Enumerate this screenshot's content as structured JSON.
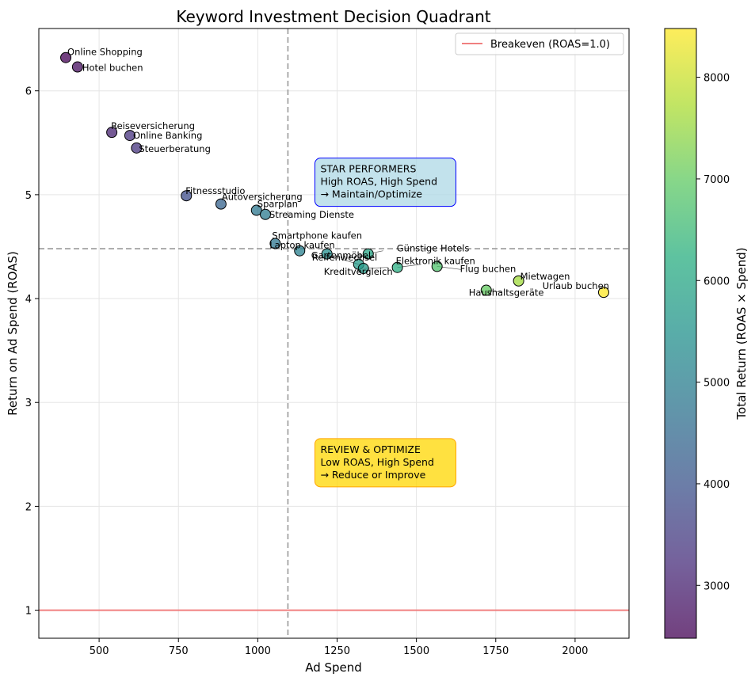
{
  "chart_data": {
    "type": "scatter",
    "title": "Keyword Investment Decision Quadrant",
    "xlabel": "Ad Spend",
    "ylabel": "Return on Ad Spend (ROAS)",
    "xlim": [
      310,
      2170
    ],
    "ylim": [
      0.73,
      6.6
    ],
    "x_ticks": [
      500,
      750,
      1000,
      1250,
      1500,
      1750,
      2000
    ],
    "y_ticks": [
      1,
      2,
      3,
      4,
      5,
      6
    ],
    "grid": true,
    "colormap": "viridis",
    "colorbar": {
      "label": "Total Return (ROAS × Spend)",
      "range": [
        2480,
        8480
      ],
      "ticks": [
        3000,
        4000,
        5000,
        6000,
        7000,
        8000
      ]
    },
    "reference_lines": {
      "breakeven_y": 1.0,
      "breakeven_color": "#f08080",
      "median_x": 1095,
      "median_y": 4.48
    },
    "legend": {
      "position": "top-right",
      "entries": [
        {
          "label": "Breakeven (ROAS=1.0)",
          "color": "#f08080"
        }
      ]
    },
    "annotations": [
      {
        "id": "star",
        "lines": [
          "STAR PERFORMERS",
          "High ROAS, High Spend",
          "→ Maintain/Optimize"
        ],
        "x": 1200,
        "y": 5.2,
        "fill": "#add8e6",
        "border": "#0000ff"
      },
      {
        "id": "review",
        "lines": [
          "REVIEW & OPTIMIZE",
          "Low ROAS, High Spend",
          "→ Reduce or Improve"
        ],
        "x": 1200,
        "y": 2.5,
        "fill": "#ffd700",
        "border": "#ffa500"
      }
    ],
    "points": [
      {
        "label": "Online Shopping",
        "x": 395,
        "y": 6.32,
        "total": 2497
      },
      {
        "label": "Hotel buchen",
        "x": 432,
        "y": 6.23,
        "total": 2691
      },
      {
        "label": "Reiseversicherung",
        "x": 540,
        "y": 5.6,
        "total": 3024
      },
      {
        "label": "Online Banking",
        "x": 597,
        "y": 5.57,
        "total": 3325
      },
      {
        "label": "Steuerberatung",
        "x": 618,
        "y": 5.45,
        "total": 3368
      },
      {
        "label": "Fitnessstudio",
        "x": 775,
        "y": 4.99,
        "total": 3867
      },
      {
        "label": "Autoversicherung",
        "x": 884,
        "y": 4.91,
        "total": 4340
      },
      {
        "label": "Sparplan",
        "x": 996,
        "y": 4.85,
        "total": 4831
      },
      {
        "label": "Streaming Dienste",
        "x": 1024,
        "y": 4.81,
        "total": 4925
      },
      {
        "label": "Smartphone kaufen",
        "x": 1055,
        "y": 4.53,
        "total": 4779
      },
      {
        "label": "Laptop kaufen",
        "x": 1132,
        "y": 4.46,
        "total": 5049
      },
      {
        "label": "Gartenmöbel",
        "x": 1218,
        "y": 4.43,
        "total": 5396
      },
      {
        "label": "Günstige Hotels",
        "x": 1348,
        "y": 4.43,
        "total": 5972
      },
      {
        "label": "Reifenwechsel",
        "x": 1318,
        "y": 4.33,
        "total": 5707
      },
      {
        "label": "Kreditvergleich",
        "x": 1333,
        "y": 4.29,
        "total": 5719
      },
      {
        "label": "Elektronik kaufen",
        "x": 1440,
        "y": 4.3,
        "total": 6192
      },
      {
        "label": "Flug buchen",
        "x": 1565,
        "y": 4.31,
        "total": 6745
      },
      {
        "label": "Haushaltsgeräte",
        "x": 1720,
        "y": 4.08,
        "total": 7018
      },
      {
        "label": "Mietwagen",
        "x": 1822,
        "y": 4.17,
        "total": 7598
      },
      {
        "label": "Urlaub buchen",
        "x": 2090,
        "y": 4.06,
        "total": 8485
      }
    ]
  }
}
